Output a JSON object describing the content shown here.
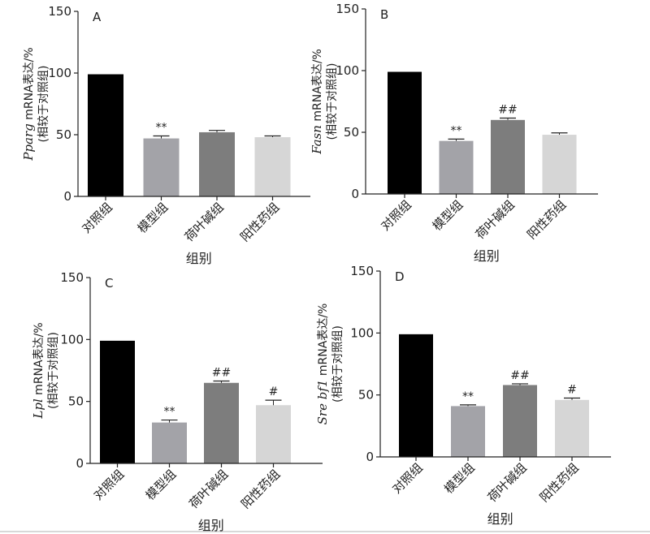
{
  "colors": {
    "对照组": "#000000",
    "模型组": "#a3a3a8",
    "荷叶碱组": "#7d7d7d",
    "阳性药组": "#d6d6d6",
    "axis": "#222222",
    "bottom_rule": "#b0b0b0"
  },
  "chart_data": [
    {
      "type": "bar",
      "panel": "A",
      "categories": [
        "对照组",
        "模型组",
        "荷叶碱组",
        "阳性药组"
      ],
      "values": [
        99,
        47,
        52,
        48
      ],
      "errors": [
        0,
        2,
        1.5,
        1
      ],
      "annotations": [
        "",
        "**",
        "",
        ""
      ],
      "ylabel_gene": "Pparg",
      "ylabel_suffix": " mRNA表达/%",
      "ylabel_line2": "(相较于对照组)",
      "xlabel": "组别",
      "ylim": [
        0,
        150
      ],
      "yticks": [
        0,
        50,
        100,
        150
      ]
    },
    {
      "type": "bar",
      "panel": "B",
      "categories": [
        "对照组",
        "模型组",
        "荷叶碱组",
        "阳性药组"
      ],
      "values": [
        99,
        43,
        60,
        48
      ],
      "errors": [
        0,
        1.5,
        1.5,
        1.5
      ],
      "annotations": [
        "",
        "**",
        "##",
        ""
      ],
      "ylabel_gene": "Fasn",
      "ylabel_suffix": " mRNA表达/%",
      "ylabel_line2": "(相较于对照组)",
      "xlabel": "组别",
      "ylim": [
        0,
        150
      ],
      "yticks": [
        0,
        50,
        100,
        150
      ]
    },
    {
      "type": "bar",
      "panel": "C",
      "categories": [
        "对照组",
        "模型组",
        "荷叶碱组",
        "阳性药组"
      ],
      "values": [
        99,
        33,
        65,
        47
      ],
      "errors": [
        0,
        2,
        1.5,
        4
      ],
      "annotations": [
        "",
        "**",
        "##",
        "#"
      ],
      "ylabel_gene": "Lpl",
      "ylabel_suffix": " mRNA表达/%",
      "ylabel_line2": "(相较于对照组)",
      "xlabel": "组别",
      "ylim": [
        0,
        150
      ],
      "yticks": [
        0,
        50,
        100,
        150
      ]
    },
    {
      "type": "bar",
      "panel": "D",
      "categories": [
        "对照组",
        "模型组",
        "荷叶碱组",
        "阳性药组"
      ],
      "values": [
        99,
        41,
        58,
        46
      ],
      "errors": [
        0,
        1,
        1,
        1.5
      ],
      "annotations": [
        "",
        "**",
        "##",
        "#"
      ],
      "ylabel_gene": "Sre bf1",
      "ylabel_suffix": " mRNA表达/%",
      "ylabel_line2": "(相较于对照组)",
      "xlabel": "组别",
      "ylim": [
        0,
        150
      ],
      "yticks": [
        0,
        50,
        100,
        150
      ]
    }
  ]
}
